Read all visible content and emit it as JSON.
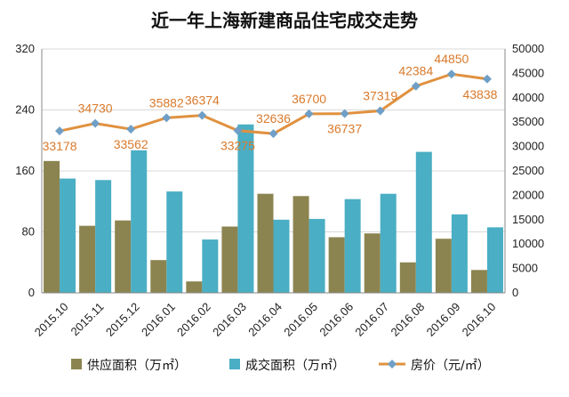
{
  "chart_data": {
    "type": "bar",
    "title": "近一年上海新建商品住宅成交走势",
    "categories": [
      "2015.10",
      "2015.11",
      "2015.12",
      "2016.01",
      "2016.02",
      "2016.03",
      "2016.04",
      "2016.05",
      "2016.06",
      "2016.07",
      "2016.08",
      "2016.09",
      "2016.10"
    ],
    "left_axis": {
      "ylim": [
        0,
        320
      ],
      "ticks": [
        0,
        80,
        160,
        240,
        320
      ]
    },
    "right_axis": {
      "ylim": [
        0,
        50000
      ],
      "ticks": [
        0,
        5000,
        10000,
        15000,
        20000,
        25000,
        30000,
        35000,
        40000,
        45000,
        50000
      ]
    },
    "series": [
      {
        "name": "供应面积（万㎡）",
        "type": "bar",
        "axis": "left",
        "color": "#8c8450",
        "values": [
          173,
          88,
          95,
          43,
          15,
          87,
          130,
          127,
          73,
          78,
          40,
          71,
          30
        ]
      },
      {
        "name": "成交面积（万㎡）",
        "type": "bar",
        "axis": "left",
        "color": "#4aaec4",
        "values": [
          150,
          148,
          187,
          133,
          70,
          221,
          96,
          97,
          123,
          130,
          185,
          103,
          86
        ]
      },
      {
        "name": "房价（元/㎡）",
        "type": "line",
        "axis": "right",
        "color": "#e0913f",
        "marker_color": "#6f9fc6",
        "values": [
          33178,
          34730,
          33562,
          35882,
          36374,
          33275,
          32636,
          36700,
          36737,
          37319,
          42384,
          44850,
          43838
        ],
        "data_labels": [
          "33178",
          "34730",
          "33562",
          "35882",
          "36374",
          "33275",
          "32636",
          "36700",
          "36737",
          "37319",
          "42384",
          "44850",
          "43838"
        ]
      }
    ],
    "grid": true,
    "legend_position": "bottom"
  }
}
